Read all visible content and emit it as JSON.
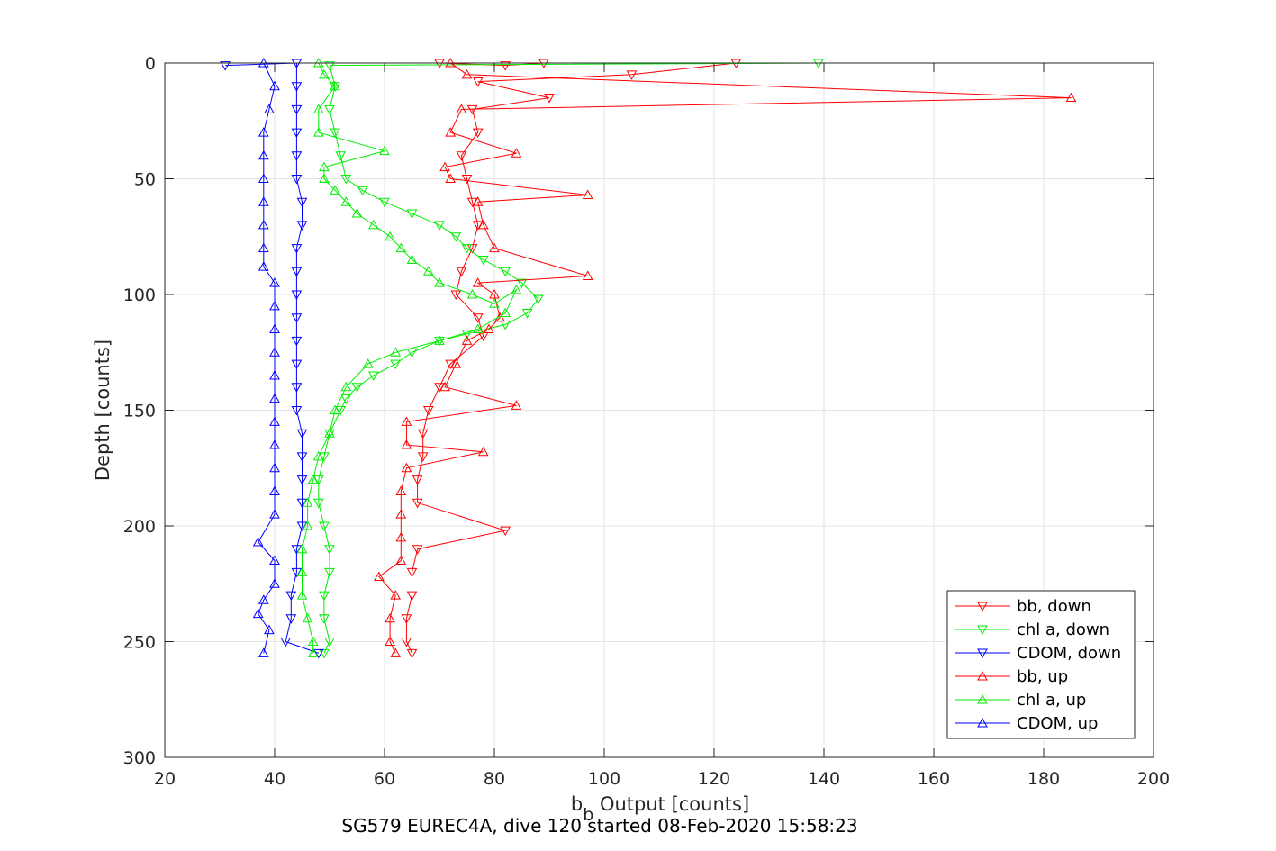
{
  "chart_data": {
    "type": "line",
    "xlabel_main": "b",
    "xlabel_sub": "b",
    "xlabel_rest": " Output [counts]",
    "ylabel": "Depth [counts]",
    "caption": "SG579 EUREC4A, dive 120 started 08-Feb-2020 15:58:23",
    "xlim": [
      20,
      200
    ],
    "ylim": [
      0,
      300
    ],
    "y_reversed": true,
    "grid": true,
    "legend_position": "bottom-right",
    "x_ticks": [
      20,
      40,
      60,
      80,
      100,
      120,
      140,
      160,
      180,
      200
    ],
    "y_ticks": [
      0,
      50,
      100,
      150,
      200,
      250,
      300
    ],
    "series": [
      {
        "name": "bb, down",
        "color": "#ff0000",
        "marker": "triangle-down",
        "points": [
          [
            70,
            0
          ],
          [
            82,
            1
          ],
          [
            89,
            0
          ],
          [
            124,
            0
          ],
          [
            105,
            5
          ],
          [
            77,
            8
          ],
          [
            90,
            15
          ],
          [
            76,
            20
          ],
          [
            77,
            30
          ],
          [
            74,
            40
          ],
          [
            75,
            50
          ],
          [
            76,
            60
          ],
          [
            77,
            70
          ],
          [
            76,
            80
          ],
          [
            74,
            90
          ],
          [
            73,
            100
          ],
          [
            77,
            110
          ],
          [
            78,
            118
          ],
          [
            72,
            130
          ],
          [
            70,
            140
          ],
          [
            68,
            150
          ],
          [
            67,
            160
          ],
          [
            67,
            170
          ],
          [
            66,
            180
          ],
          [
            66,
            190
          ],
          [
            82,
            202
          ],
          [
            66,
            210
          ],
          [
            65,
            220
          ],
          [
            65,
            230
          ],
          [
            64,
            240
          ],
          [
            64,
            250
          ],
          [
            65,
            255
          ]
        ]
      },
      {
        "name": "chl a, down",
        "color": "#00ee00",
        "marker": "triangle-down",
        "points": [
          [
            139,
            0
          ],
          [
            50,
            1
          ],
          [
            51,
            10
          ],
          [
            50,
            20
          ],
          [
            51,
            30
          ],
          [
            52,
            40
          ],
          [
            53,
            50
          ],
          [
            56,
            55
          ],
          [
            60,
            60
          ],
          [
            65,
            65
          ],
          [
            70,
            70
          ],
          [
            73,
            75
          ],
          [
            75,
            80
          ],
          [
            78,
            85
          ],
          [
            82,
            90
          ],
          [
            85,
            95
          ],
          [
            88,
            102
          ],
          [
            86,
            108
          ],
          [
            82,
            113
          ],
          [
            75,
            117
          ],
          [
            70,
            120
          ],
          [
            65,
            125
          ],
          [
            62,
            130
          ],
          [
            58,
            135
          ],
          [
            55,
            140
          ],
          [
            53,
            145
          ],
          [
            52,
            150
          ],
          [
            50,
            160
          ],
          [
            49,
            170
          ],
          [
            48,
            180
          ],
          [
            48,
            190
          ],
          [
            49,
            200
          ],
          [
            50,
            210
          ],
          [
            50,
            220
          ],
          [
            49,
            230
          ],
          [
            49,
            240
          ],
          [
            50,
            250
          ],
          [
            49,
            255
          ]
        ]
      },
      {
        "name": "CDOM, down",
        "color": "#0000ff",
        "marker": "triangle-down",
        "points": [
          [
            31,
            1
          ],
          [
            44,
            0
          ],
          [
            44,
            10
          ],
          [
            44,
            20
          ],
          [
            44,
            30
          ],
          [
            44,
            40
          ],
          [
            44,
            50
          ],
          [
            45,
            60
          ],
          [
            45,
            70
          ],
          [
            44,
            80
          ],
          [
            44,
            90
          ],
          [
            44,
            100
          ],
          [
            44,
            110
          ],
          [
            44,
            120
          ],
          [
            44,
            130
          ],
          [
            44,
            140
          ],
          [
            44,
            150
          ],
          [
            45,
            160
          ],
          [
            45,
            170
          ],
          [
            45,
            180
          ],
          [
            45,
            190
          ],
          [
            45,
            200
          ],
          [
            44,
            210
          ],
          [
            44,
            220
          ],
          [
            43,
            230
          ],
          [
            43,
            240
          ],
          [
            42,
            250
          ],
          [
            48,
            255
          ]
        ]
      },
      {
        "name": "bb, up",
        "color": "#ff0000",
        "marker": "triangle-up",
        "points": [
          [
            72,
            0
          ],
          [
            75,
            5
          ],
          [
            185,
            15
          ],
          [
            74,
            20
          ],
          [
            72,
            30
          ],
          [
            84,
            39
          ],
          [
            71,
            45
          ],
          [
            72,
            50
          ],
          [
            97,
            57
          ],
          [
            77,
            60
          ],
          [
            78,
            70
          ],
          [
            80,
            80
          ],
          [
            97,
            92
          ],
          [
            77,
            95
          ],
          [
            80,
            100
          ],
          [
            81,
            110
          ],
          [
            79,
            115
          ],
          [
            75,
            120
          ],
          [
            73,
            130
          ],
          [
            71,
            140
          ],
          [
            84,
            148
          ],
          [
            64,
            155
          ],
          [
            64,
            165
          ],
          [
            78,
            168
          ],
          [
            64,
            175
          ],
          [
            63,
            185
          ],
          [
            63,
            195
          ],
          [
            63,
            205
          ],
          [
            63,
            215
          ],
          [
            59,
            222
          ],
          [
            62,
            230
          ],
          [
            61,
            240
          ],
          [
            61,
            250
          ],
          [
            62,
            255
          ]
        ]
      },
      {
        "name": "chl a, up",
        "color": "#00ee00",
        "marker": "triangle-up",
        "points": [
          [
            48,
            0
          ],
          [
            49,
            5
          ],
          [
            51,
            10
          ],
          [
            48,
            20
          ],
          [
            48,
            30
          ],
          [
            60,
            38
          ],
          [
            49,
            45
          ],
          [
            49,
            50
          ],
          [
            51,
            55
          ],
          [
            53,
            60
          ],
          [
            55,
            65
          ],
          [
            58,
            70
          ],
          [
            61,
            75
          ],
          [
            63,
            80
          ],
          [
            65,
            85
          ],
          [
            68,
            90
          ],
          [
            70,
            95
          ],
          [
            76,
            100
          ],
          [
            80,
            104
          ],
          [
            84,
            98
          ],
          [
            82,
            108
          ],
          [
            77,
            115
          ],
          [
            70,
            120
          ],
          [
            62,
            125
          ],
          [
            57,
            130
          ],
          [
            53,
            140
          ],
          [
            51,
            150
          ],
          [
            50,
            160
          ],
          [
            48,
            170
          ],
          [
            47,
            180
          ],
          [
            46,
            190
          ],
          [
            46,
            200
          ],
          [
            45,
            210
          ],
          [
            45,
            220
          ],
          [
            45,
            230
          ],
          [
            46,
            240
          ],
          [
            47,
            250
          ],
          [
            47,
            255
          ]
        ]
      },
      {
        "name": "CDOM, up",
        "color": "#0000ff",
        "marker": "triangle-up",
        "points": [
          [
            38,
            0
          ],
          [
            40,
            10
          ],
          [
            39,
            20
          ],
          [
            38,
            30
          ],
          [
            38,
            40
          ],
          [
            38,
            50
          ],
          [
            38,
            60
          ],
          [
            38,
            70
          ],
          [
            38,
            80
          ],
          [
            38,
            88
          ],
          [
            40,
            95
          ],
          [
            40,
            105
          ],
          [
            40,
            115
          ],
          [
            40,
            125
          ],
          [
            40,
            135
          ],
          [
            40,
            145
          ],
          [
            40,
            155
          ],
          [
            40,
            165
          ],
          [
            40,
            175
          ],
          [
            40,
            185
          ],
          [
            40,
            195
          ],
          [
            37,
            207
          ],
          [
            40,
            215
          ],
          [
            40,
            225
          ],
          [
            38,
            232
          ],
          [
            37,
            238
          ],
          [
            39,
            245
          ],
          [
            38,
            255
          ]
        ]
      }
    ]
  }
}
